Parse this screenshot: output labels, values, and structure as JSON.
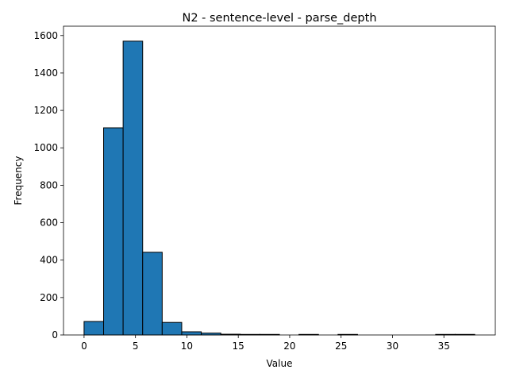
{
  "chart_data": {
    "type": "bar",
    "title": "N2 - sentence-level - parse_depth",
    "xlabel": "Value",
    "ylabel": "Frequency",
    "xlim": [
      -2,
      40
    ],
    "ylim": [
      0,
      1650
    ],
    "x_ticks": [
      0,
      5,
      10,
      15,
      20,
      25,
      30,
      35
    ],
    "y_ticks": [
      0,
      200,
      400,
      600,
      800,
      1000,
      1200,
      1400,
      1600
    ],
    "bin_edges": [
      0,
      1.9,
      3.8,
      5.7,
      7.6,
      9.5,
      11.4,
      13.3,
      15.2,
      17.1,
      19.0,
      20.9,
      22.8,
      24.7,
      26.6,
      28.5,
      30.4,
      32.3,
      34.2,
      36.1,
      38.0
    ],
    "values": [
      72,
      1107,
      1570,
      442,
      67,
      17,
      10,
      4,
      3,
      3,
      0,
      3,
      0,
      3,
      0,
      0,
      0,
      0,
      3,
      3
    ],
    "grid": false,
    "bar_color": "#1f77b4",
    "edge_color": "#000000"
  }
}
